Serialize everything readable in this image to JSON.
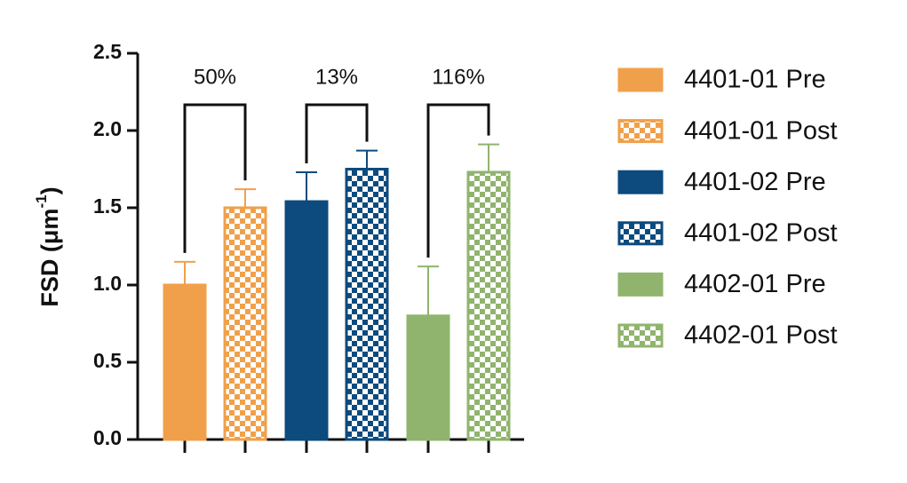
{
  "chart_data": {
    "type": "bar",
    "y_label": "FSD (μm",
    "y_label_superscript": "-1",
    "y_label_end": ")",
    "ylim": [
      0,
      2.5
    ],
    "yticks": [
      {
        "value": 0,
        "label": "0.0"
      },
      {
        "value": 0.5,
        "label": "0.5"
      },
      {
        "value": 1,
        "label": "1.0"
      },
      {
        "value": 1.5,
        "label": "1.5"
      },
      {
        "value": 2,
        "label": "2.0"
      },
      {
        "value": 2.5,
        "label": "2.5"
      }
    ],
    "annotations": [
      "50%",
      "13%",
      "116%"
    ],
    "legend": "right",
    "series": [
      {
        "name": "4401-01 Pre",
        "color": "#f0a04b",
        "pattern": "solid",
        "values": [
          1.0
        ],
        "errors": [
          0.15
        ]
      },
      {
        "name": "4401-01 Post",
        "color": "#f0a04b",
        "pattern": "checker",
        "values": [
          1.5
        ],
        "errors": [
          0.12
        ]
      },
      {
        "name": "4401-02 Pre",
        "color": "#0d4a7d",
        "pattern": "solid",
        "values": [
          1.54
        ],
        "errors": [
          0.19
        ]
      },
      {
        "name": "4401-02 Post",
        "color": "#0d4a7d",
        "pattern": "checker",
        "values": [
          1.75
        ],
        "errors": [
          0.12
        ]
      },
      {
        "name": "4402-01 Pre",
        "color": "#90b46e",
        "pattern": "solid",
        "values": [
          0.8
        ],
        "errors": [
          0.32
        ]
      },
      {
        "name": "4402-01 Post",
        "color": "#90b46e",
        "pattern": "checker",
        "values": [
          1.73
        ],
        "errors": [
          0.18
        ]
      }
    ]
  }
}
